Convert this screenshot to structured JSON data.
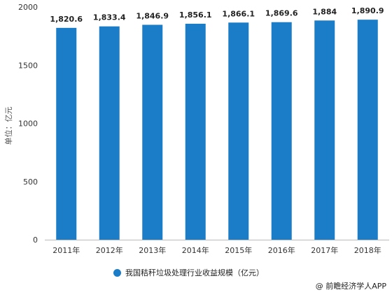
{
  "chart_data": {
    "type": "bar",
    "categories": [
      "2011年",
      "2012年",
      "2013年",
      "2014年",
      "2015年",
      "2016年",
      "2017年",
      "2018年"
    ],
    "series": [
      {
        "name": "我国秸秆垃圾处理行业收益规模（亿元）",
        "values": [
          1820.6,
          1833.4,
          1846.9,
          1856.1,
          1866.1,
          1869.6,
          1884,
          1890.9
        ],
        "labels": [
          "1,820.6",
          "1,833.4",
          "1,846.9",
          "1,856.1",
          "1,866.1",
          "1,869.6",
          "1,884",
          "1,890.9"
        ]
      }
    ],
    "ylabel": "单位：亿元",
    "ylim": [
      0,
      2000
    ],
    "yticks": [
      "0",
      "500",
      "1000",
      "1500",
      "2000"
    ],
    "grid": false,
    "legend_position": "bottom"
  },
  "colors": {
    "bar": "#1b7dc7",
    "axis": "#bbbbbb"
  },
  "source": "@ 前瞻经济学人APP"
}
